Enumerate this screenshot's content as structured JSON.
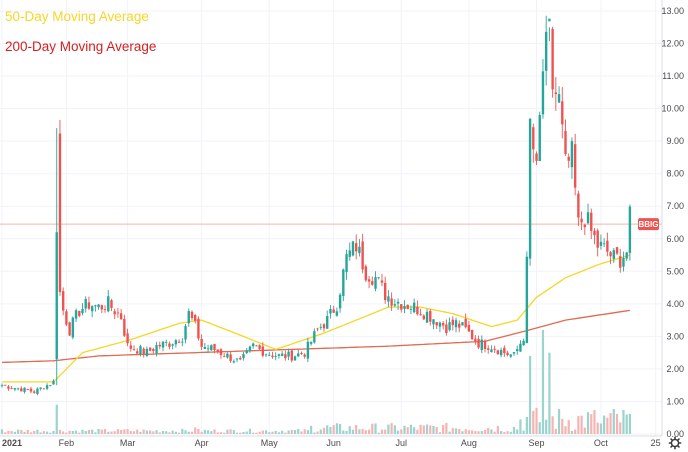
{
  "chart_data": {
    "type": "candlestick",
    "ticker_label": "BBIG",
    "last_price": 6.45,
    "legend": [
      {
        "label": "50-Day Moving Average",
        "color": "#f5d727"
      },
      {
        "label": "200-Day Moving Average",
        "color": "#d6201f"
      }
    ],
    "legend_position": "top-left",
    "grid": true,
    "price_axis": {
      "position": "right",
      "ylim": [
        0,
        13
      ],
      "ticks": [
        "0.00",
        "1.00",
        "2.00",
        "3.00",
        "4.00",
        "5.00",
        "6.00",
        "7.00",
        "8.00",
        "9.00",
        "10.00",
        "11.00",
        "12.00",
        "13.00"
      ]
    },
    "time_axis": {
      "ticks": [
        {
          "label": "2021",
          "bold": true,
          "idx": 0
        },
        {
          "label": "Feb",
          "idx": 20
        },
        {
          "label": "Mar",
          "idx": 39
        },
        {
          "label": "Apr",
          "idx": 62
        },
        {
          "label": "May",
          "idx": 83
        },
        {
          "label": "Jun",
          "idx": 103
        },
        {
          "label": "Jul",
          "idx": 124
        },
        {
          "label": "Aug",
          "idx": 145
        },
        {
          "label": "Sep",
          "idx": 166
        },
        {
          "label": "Oct",
          "idx": 186
        },
        {
          "label": "25",
          "idx": 203
        }
      ]
    },
    "colors": {
      "up": "#26a69a",
      "down": "#ef5350",
      "ma50": "#f5d727",
      "ma200": "#e06a52",
      "price_line": "#f2b8ad",
      "price_label_bg": "#ef5350"
    },
    "anchors": [
      [
        0,
        1.5
      ],
      [
        10,
        1.3
      ],
      [
        16,
        1.6
      ],
      [
        17,
        9.4
      ],
      [
        17.5,
        4.6
      ],
      [
        19,
        3.8
      ],
      [
        21,
        3.2
      ],
      [
        24,
        3.8
      ],
      [
        27,
        4.0
      ],
      [
        30,
        3.9
      ],
      [
        33,
        4.0
      ],
      [
        37,
        3.6
      ],
      [
        39,
        2.7
      ],
      [
        42,
        2.6
      ],
      [
        45,
        2.5
      ],
      [
        48,
        2.7
      ],
      [
        52,
        2.8
      ],
      [
        56,
        3.0
      ],
      [
        58,
        3.7
      ],
      [
        60,
        3.3
      ],
      [
        62,
        2.7
      ],
      [
        66,
        2.6
      ],
      [
        70,
        2.4
      ],
      [
        74,
        2.2
      ],
      [
        78,
        2.7
      ],
      [
        82,
        2.5
      ],
      [
        86,
        2.4
      ],
      [
        90,
        2.4
      ],
      [
        94,
        2.5
      ],
      [
        98,
        3.2
      ],
      [
        101,
        3.5
      ],
      [
        104,
        4.0
      ],
      [
        107,
        5.4
      ],
      [
        110,
        5.8
      ],
      [
        113,
        5.0
      ],
      [
        116,
        4.8
      ],
      [
        119,
        4.3
      ],
      [
        122,
        4.1
      ],
      [
        125,
        4.0
      ],
      [
        128,
        3.9
      ],
      [
        132,
        3.7
      ],
      [
        135,
        3.5
      ],
      [
        138,
        3.3
      ],
      [
        141,
        3.4
      ],
      [
        144,
        3.2
      ],
      [
        148,
        2.8
      ],
      [
        152,
        2.7
      ],
      [
        156,
        2.5
      ],
      [
        159,
        2.4
      ],
      [
        162,
        3.0
      ],
      [
        163,
        5.2
      ],
      [
        164,
        9.5
      ],
      [
        166,
        8.0
      ],
      [
        168,
        11.2
      ],
      [
        170,
        12.2
      ],
      [
        171,
        10.7
      ],
      [
        173,
        10.2
      ],
      [
        175,
        8.2
      ],
      [
        177,
        8.5
      ],
      [
        179,
        6.4
      ],
      [
        181,
        6.7
      ],
      [
        183,
        6.2
      ],
      [
        185,
        5.8
      ],
      [
        188,
        5.6
      ],
      [
        190,
        5.4
      ],
      [
        192,
        5.4
      ],
      [
        194,
        5.6
      ],
      [
        195,
        6.6
      ]
    ],
    "volume": [
      [
        17,
        0.9
      ],
      [
        39,
        0.15
      ],
      [
        60,
        0.2
      ],
      [
        164,
        2.4
      ],
      [
        168,
        3.2
      ],
      [
        170,
        2.5
      ],
      [
        185,
        0.35
      ],
      [
        194,
        0.6
      ]
    ],
    "ma50": [
      [
        0,
        1.6
      ],
      [
        16,
        1.6
      ],
      [
        25,
        2.5
      ],
      [
        40,
        2.9
      ],
      [
        55,
        3.4
      ],
      [
        62,
        3.5
      ],
      [
        75,
        3.0
      ],
      [
        85,
        2.6
      ],
      [
        100,
        3.1
      ],
      [
        110,
        3.5
      ],
      [
        120,
        3.9
      ],
      [
        130,
        3.9
      ],
      [
        140,
        3.7
      ],
      [
        152,
        3.3
      ],
      [
        160,
        3.5
      ],
      [
        166,
        4.2
      ],
      [
        175,
        4.8
      ],
      [
        185,
        5.2
      ],
      [
        195,
        5.5
      ]
    ],
    "ma200": [
      [
        0,
        2.2
      ],
      [
        16,
        2.25
      ],
      [
        30,
        2.4
      ],
      [
        60,
        2.5
      ],
      [
        90,
        2.6
      ],
      [
        120,
        2.7
      ],
      [
        150,
        2.85
      ],
      [
        162,
        3.15
      ],
      [
        175,
        3.5
      ],
      [
        195,
        3.8
      ]
    ]
  }
}
